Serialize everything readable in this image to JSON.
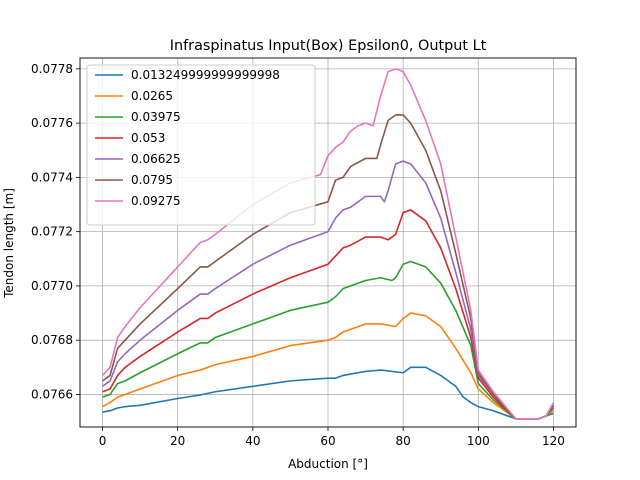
{
  "chart_data": {
    "type": "line",
    "title": "Infraspinatus Input(Box) Epsilon0, Output Lt",
    "xlabel": "Abduction [°]",
    "ylabel": "Tendon length [m]",
    "xlim": [
      -6,
      126
    ],
    "ylim": [
      0.07648,
      0.07784
    ],
    "xticks": [
      0,
      20,
      40,
      60,
      80,
      100,
      120
    ],
    "xtick_labels": [
      "0",
      "20",
      "40",
      "60",
      "80",
      "100",
      "120"
    ],
    "yticks": [
      0.0766,
      0.0768,
      0.077,
      0.0772,
      0.0774,
      0.0776,
      0.0778
    ],
    "ytick_labels": [
      "0.0766",
      "0.0768",
      "0.0770",
      "0.0772",
      "0.0774",
      "0.0776",
      "0.0778"
    ],
    "grid": true,
    "legend_position": "top-left",
    "series": [
      {
        "name": "0.013249999999999998",
        "color": "#1f77b4",
        "points": [
          [
            0,
            0.076535
          ],
          [
            2,
            0.07654
          ],
          [
            4,
            0.07655
          ],
          [
            6,
            0.076555
          ],
          [
            10,
            0.07656
          ],
          [
            20,
            0.076585
          ],
          [
            26,
            0.076598
          ],
          [
            30,
            0.07661
          ],
          [
            40,
            0.07663
          ],
          [
            50,
            0.07665
          ],
          [
            60,
            0.07666
          ],
          [
            62,
            0.07666
          ],
          [
            64,
            0.07667
          ],
          [
            66,
            0.076675
          ],
          [
            70,
            0.076685
          ],
          [
            74,
            0.07669
          ],
          [
            80,
            0.07668
          ],
          [
            82,
            0.0767
          ],
          [
            86,
            0.0767
          ],
          [
            90,
            0.07667
          ],
          [
            94,
            0.07663
          ],
          [
            96,
            0.07659
          ],
          [
            98,
            0.07657
          ],
          [
            100,
            0.076555
          ],
          [
            104,
            0.07654
          ],
          [
            110,
            0.07651
          ],
          [
            116,
            0.07651
          ],
          [
            118,
            0.07652
          ],
          [
            120,
            0.07653
          ]
        ]
      },
      {
        "name": "0.0265",
        "color": "#ff7f0e",
        "points": [
          [
            0,
            0.076555
          ],
          [
            2,
            0.07657
          ],
          [
            4,
            0.07659
          ],
          [
            6,
            0.0766
          ],
          [
            10,
            0.07662
          ],
          [
            20,
            0.07667
          ],
          [
            26,
            0.07669
          ],
          [
            30,
            0.07671
          ],
          [
            40,
            0.07674
          ],
          [
            50,
            0.07678
          ],
          [
            60,
            0.0768
          ],
          [
            62,
            0.07681
          ],
          [
            64,
            0.07683
          ],
          [
            66,
            0.07684
          ],
          [
            70,
            0.07686
          ],
          [
            74,
            0.07686
          ],
          [
            78,
            0.07685
          ],
          [
            80,
            0.07688
          ],
          [
            82,
            0.0769
          ],
          [
            86,
            0.07689
          ],
          [
            90,
            0.07685
          ],
          [
            94,
            0.07677
          ],
          [
            98,
            0.07668
          ],
          [
            100,
            0.07662
          ],
          [
            104,
            0.07657
          ],
          [
            110,
            0.07651
          ],
          [
            116,
            0.07651
          ],
          [
            118,
            0.07652
          ],
          [
            120,
            0.07654
          ]
        ]
      },
      {
        "name": "0.03975",
        "color": "#2ca02c",
        "points": [
          [
            0,
            0.07659
          ],
          [
            2,
            0.0766
          ],
          [
            4,
            0.07664
          ],
          [
            6,
            0.07665
          ],
          [
            10,
            0.07668
          ],
          [
            20,
            0.07675
          ],
          [
            26,
            0.07679
          ],
          [
            28,
            0.07679
          ],
          [
            30,
            0.07681
          ],
          [
            40,
            0.07686
          ],
          [
            50,
            0.07691
          ],
          [
            60,
            0.07694
          ],
          [
            62,
            0.07696
          ],
          [
            64,
            0.07699
          ],
          [
            66,
            0.077
          ],
          [
            70,
            0.07702
          ],
          [
            74,
            0.07703
          ],
          [
            77,
            0.07702
          ],
          [
            78,
            0.07703
          ],
          [
            80,
            0.07708
          ],
          [
            82,
            0.07709
          ],
          [
            86,
            0.07707
          ],
          [
            90,
            0.07701
          ],
          [
            94,
            0.07691
          ],
          [
            98,
            0.07678
          ],
          [
            100,
            0.07664
          ],
          [
            104,
            0.07658
          ],
          [
            110,
            0.07651
          ],
          [
            116,
            0.07651
          ],
          [
            118,
            0.07652
          ],
          [
            120,
            0.07655
          ]
        ]
      },
      {
        "name": "0.053",
        "color": "#d62728",
        "points": [
          [
            0,
            0.07661
          ],
          [
            2,
            0.07662
          ],
          [
            4,
            0.07667
          ],
          [
            6,
            0.0767
          ],
          [
            10,
            0.07674
          ],
          [
            20,
            0.07683
          ],
          [
            26,
            0.07688
          ],
          [
            28,
            0.07688
          ],
          [
            30,
            0.0769
          ],
          [
            40,
            0.07697
          ],
          [
            50,
            0.07703
          ],
          [
            60,
            0.07708
          ],
          [
            62,
            0.07711
          ],
          [
            64,
            0.07714
          ],
          [
            66,
            0.07715
          ],
          [
            70,
            0.07718
          ],
          [
            74,
            0.07718
          ],
          [
            76,
            0.07717
          ],
          [
            78,
            0.07719
          ],
          [
            80,
            0.07727
          ],
          [
            82,
            0.07728
          ],
          [
            86,
            0.07724
          ],
          [
            90,
            0.07714
          ],
          [
            94,
            0.07699
          ],
          [
            98,
            0.07681
          ],
          [
            100,
            0.07666
          ],
          [
            104,
            0.07659
          ],
          [
            110,
            0.07651
          ],
          [
            116,
            0.07651
          ],
          [
            118,
            0.07652
          ],
          [
            120,
            0.07656
          ]
        ]
      },
      {
        "name": "0.06625",
        "color": "#9467bd",
        "points": [
          [
            0,
            0.07663
          ],
          [
            2,
            0.07665
          ],
          [
            4,
            0.07672
          ],
          [
            6,
            0.07675
          ],
          [
            10,
            0.0768
          ],
          [
            20,
            0.07691
          ],
          [
            26,
            0.07697
          ],
          [
            28,
            0.07697
          ],
          [
            30,
            0.07699
          ],
          [
            40,
            0.07708
          ],
          [
            50,
            0.07715
          ],
          [
            60,
            0.0772
          ],
          [
            62,
            0.07725
          ],
          [
            64,
            0.07728
          ],
          [
            66,
            0.07729
          ],
          [
            70,
            0.07733
          ],
          [
            74,
            0.07733
          ],
          [
            75,
            0.07731
          ],
          [
            76,
            0.07735
          ],
          [
            78,
            0.07745
          ],
          [
            80,
            0.07746
          ],
          [
            82,
            0.07745
          ],
          [
            86,
            0.07738
          ],
          [
            90,
            0.07725
          ],
          [
            94,
            0.07705
          ],
          [
            98,
            0.07684
          ],
          [
            100,
            0.07667
          ],
          [
            104,
            0.0766
          ],
          [
            110,
            0.07651
          ],
          [
            116,
            0.07651
          ],
          [
            118,
            0.07652
          ],
          [
            120,
            0.07656
          ]
        ]
      },
      {
        "name": "0.0795",
        "color": "#8c564b",
        "points": [
          [
            0,
            0.07665
          ],
          [
            2,
            0.07667
          ],
          [
            4,
            0.07677
          ],
          [
            6,
            0.0768
          ],
          [
            10,
            0.07686
          ],
          [
            20,
            0.07699
          ],
          [
            26,
            0.07707
          ],
          [
            28,
            0.07707
          ],
          [
            30,
            0.07709
          ],
          [
            40,
            0.07719
          ],
          [
            50,
            0.07727
          ],
          [
            60,
            0.07731
          ],
          [
            62,
            0.07739
          ],
          [
            64,
            0.0774
          ],
          [
            66,
            0.07744
          ],
          [
            70,
            0.07747
          ],
          [
            73,
            0.07747
          ],
          [
            74,
            0.07752
          ],
          [
            76,
            0.07761
          ],
          [
            78,
            0.07763
          ],
          [
            80,
            0.07763
          ],
          [
            82,
            0.0776
          ],
          [
            86,
            0.0775
          ],
          [
            90,
            0.07735
          ],
          [
            94,
            0.07712
          ],
          [
            98,
            0.07688
          ],
          [
            100,
            0.07668
          ],
          [
            104,
            0.0766
          ],
          [
            110,
            0.07651
          ],
          [
            116,
            0.07651
          ],
          [
            118,
            0.07652
          ],
          [
            120,
            0.07656
          ]
        ]
      },
      {
        "name": "0.09275",
        "color": "#e377c2",
        "points": [
          [
            0,
            0.07667
          ],
          [
            2,
            0.0767
          ],
          [
            4,
            0.07681
          ],
          [
            6,
            0.07685
          ],
          [
            10,
            0.07692
          ],
          [
            20,
            0.07707
          ],
          [
            26,
            0.07716
          ],
          [
            28,
            0.07717
          ],
          [
            30,
            0.07719
          ],
          [
            40,
            0.0773
          ],
          [
            50,
            0.07738
          ],
          [
            58,
            0.07741
          ],
          [
            60,
            0.07748
          ],
          [
            62,
            0.07751
          ],
          [
            64,
            0.07753
          ],
          [
            66,
            0.07757
          ],
          [
            68,
            0.07759
          ],
          [
            70,
            0.0776
          ],
          [
            72,
            0.07759
          ],
          [
            74,
            0.0777
          ],
          [
            76,
            0.07779
          ],
          [
            78,
            0.0778
          ],
          [
            80,
            0.07779
          ],
          [
            82,
            0.07774
          ],
          [
            86,
            0.07761
          ],
          [
            90,
            0.07745
          ],
          [
            94,
            0.07718
          ],
          [
            98,
            0.07691
          ],
          [
            100,
            0.07669
          ],
          [
            104,
            0.07661
          ],
          [
            110,
            0.07651
          ],
          [
            116,
            0.07651
          ],
          [
            118,
            0.07652
          ],
          [
            120,
            0.07657
          ]
        ]
      }
    ]
  }
}
